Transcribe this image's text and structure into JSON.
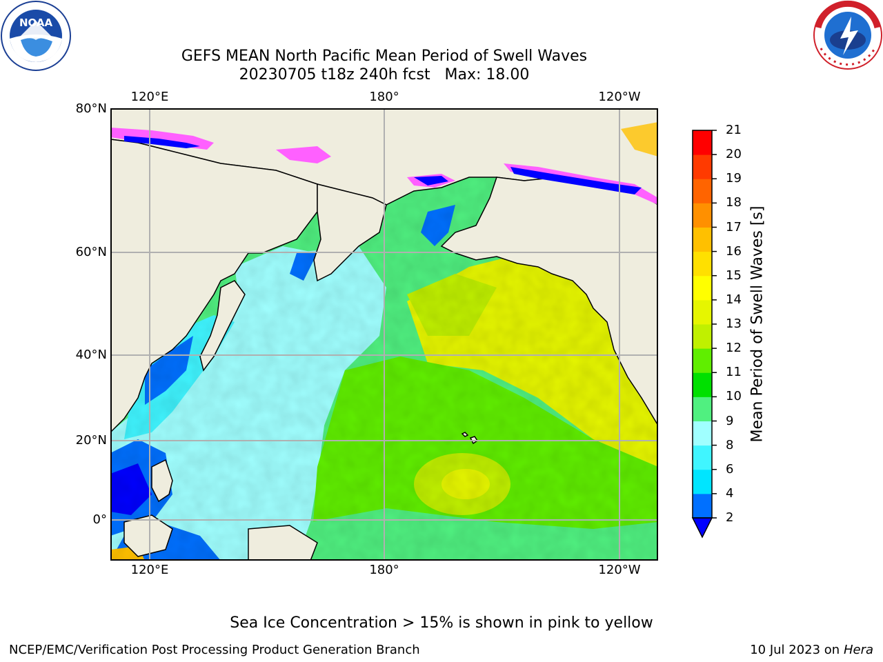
{
  "header": {
    "title_line1": "GEFS MEAN North Pacific Mean Period of Swell Waves",
    "title_line2": "20230705 t18z 240h fcst   Max: 18.00"
  },
  "logos": {
    "left": "NOAA",
    "right": "NATIONAL WEATHER SERVICE"
  },
  "map": {
    "lon_labels_top": [
      "120°E",
      "180°",
      "120°W"
    ],
    "lon_labels_bottom": [
      "120°E",
      "180°",
      "120°W"
    ],
    "lat_labels": [
      "80°N",
      "60°N",
      "40°N",
      "20°N",
      "0°"
    ],
    "colors": {
      "land": "#efedde",
      "grid": "#b0b0b0"
    }
  },
  "colorbar": {
    "label": "Mean Period of Swell Waves [s]",
    "ticks": [
      "2",
      "4",
      "6",
      "8",
      "9",
      "10",
      "11",
      "12",
      "13",
      "14",
      "15",
      "16",
      "17",
      "18",
      "19",
      "20",
      "21"
    ],
    "colors": [
      "#0070ff",
      "#00e5ff",
      "#40f5ff",
      "#a0ffff",
      "#50f080",
      "#00e000",
      "#60ee00",
      "#c0f000",
      "#e6f600",
      "#ffff00",
      "#ffe000",
      "#ffc000",
      "#ff9000",
      "#ff6400",
      "#ff3a00",
      "#ff0000"
    ],
    "under_color": "#0000ff"
  },
  "footer": {
    "note": "Sea Ice Concentration > 15% is shown in pink to yellow",
    "left": "NCEP/EMC/Verification Post Processing Product Generation Branch",
    "date": "10 Jul 2023 on",
    "machine": "Hera"
  }
}
